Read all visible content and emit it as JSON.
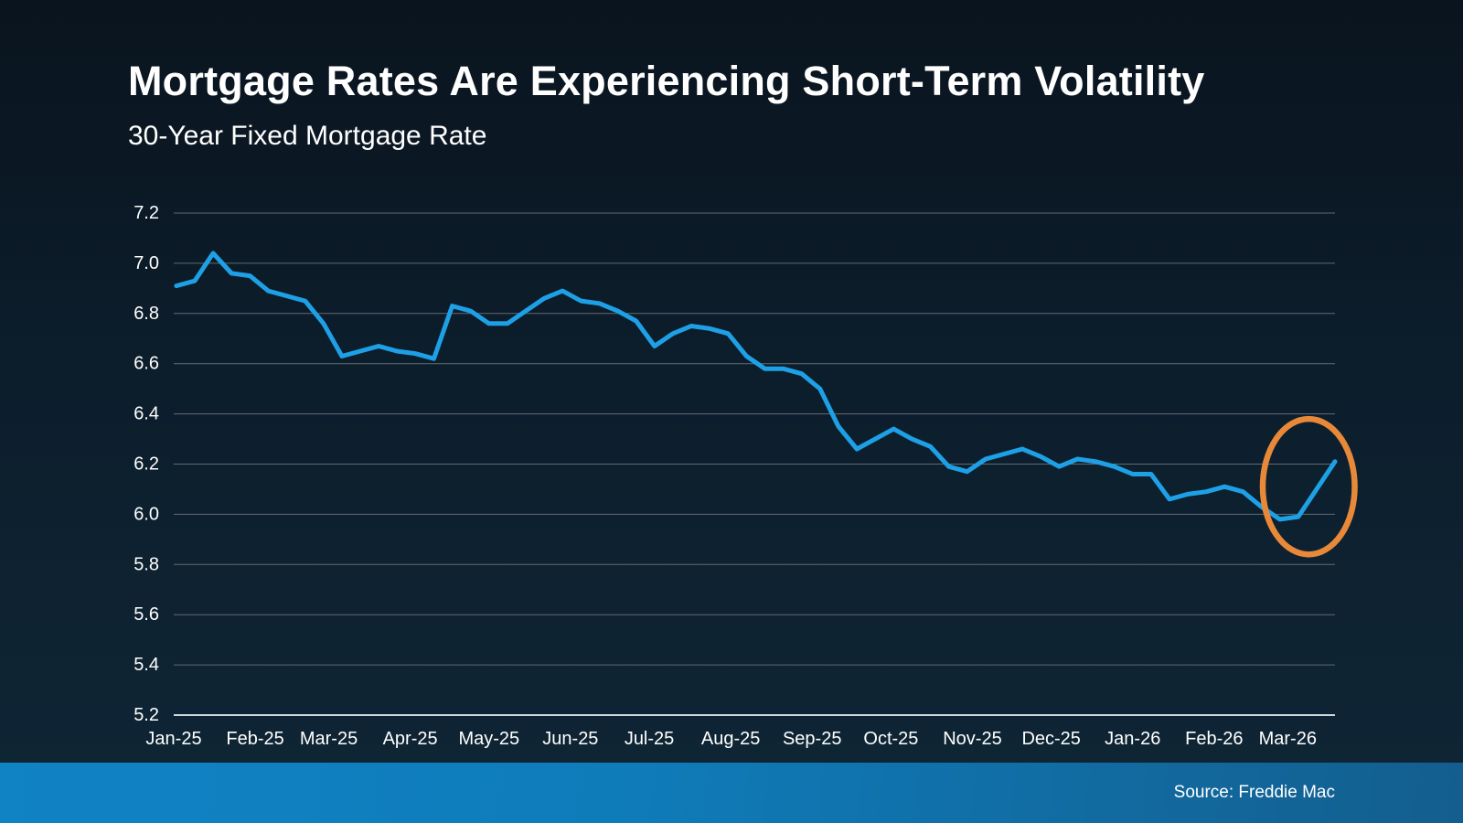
{
  "footer": {
    "source_label": "Source: Freddie Mac"
  },
  "colors": {
    "line": "#1EA0E6",
    "annotation": "#E8893A",
    "grid": "#626a6f",
    "axis_line": "#cfd8dd",
    "text": "#ffffff",
    "background_top": "#0a141e",
    "background_bottom": "#0f2636",
    "footer_left": "#1083c5",
    "footer_right": "#135e8e"
  },
  "chart_data": {
    "type": "line",
    "title": "Mortgage Rates Are Experiencing Short-Term Volatility",
    "subtitle": "30-Year Fixed Mortgage Rate",
    "grid": true,
    "ylim": [
      5.2,
      7.2
    ],
    "y_ticks": [
      "7.2",
      "7.0",
      "6.8",
      "6.6",
      "6.4",
      "6.2",
      "6.0",
      "5.8",
      "5.6",
      "5.4",
      "5.2"
    ],
    "x_tick_labels": [
      "Jan-25",
      "Feb-25",
      "Mar-25",
      "Apr-25",
      "May-25",
      "Jun-25",
      "Jul-25",
      "Aug-25",
      "Sep-25",
      "Oct-25",
      "Nov-25",
      "Dec-25",
      "Jan-26",
      "Feb-26",
      "Mar-26"
    ],
    "series": [
      {
        "name": "30-Year Fixed Mortgage Rate",
        "start_date": "2025-01-02",
        "interval_days": 7,
        "values": [
          6.91,
          6.93,
          7.04,
          6.96,
          6.95,
          6.89,
          6.87,
          6.85,
          6.76,
          6.63,
          6.65,
          6.67,
          6.65,
          6.64,
          6.62,
          6.83,
          6.81,
          6.76,
          6.76,
          6.81,
          6.86,
          6.89,
          6.85,
          6.84,
          6.81,
          6.77,
          6.67,
          6.72,
          6.75,
          6.74,
          6.72,
          6.63,
          6.58,
          6.58,
          6.56,
          6.5,
          6.35,
          6.26,
          6.3,
          6.34,
          6.3,
          6.27,
          6.19,
          6.17,
          6.22,
          6.24,
          6.26,
          6.23,
          6.19,
          6.22,
          6.21,
          6.19,
          6.16,
          6.16,
          6.06,
          6.08,
          6.09,
          6.11,
          6.09,
          6.03,
          5.98,
          5.99,
          6.1,
          6.21
        ]
      }
    ],
    "annotation": {
      "shape": "ellipse",
      "center_date": "2026-03-09",
      "center_value": 6.11,
      "radius_days": 17.5,
      "radius_value": 0.27
    }
  }
}
